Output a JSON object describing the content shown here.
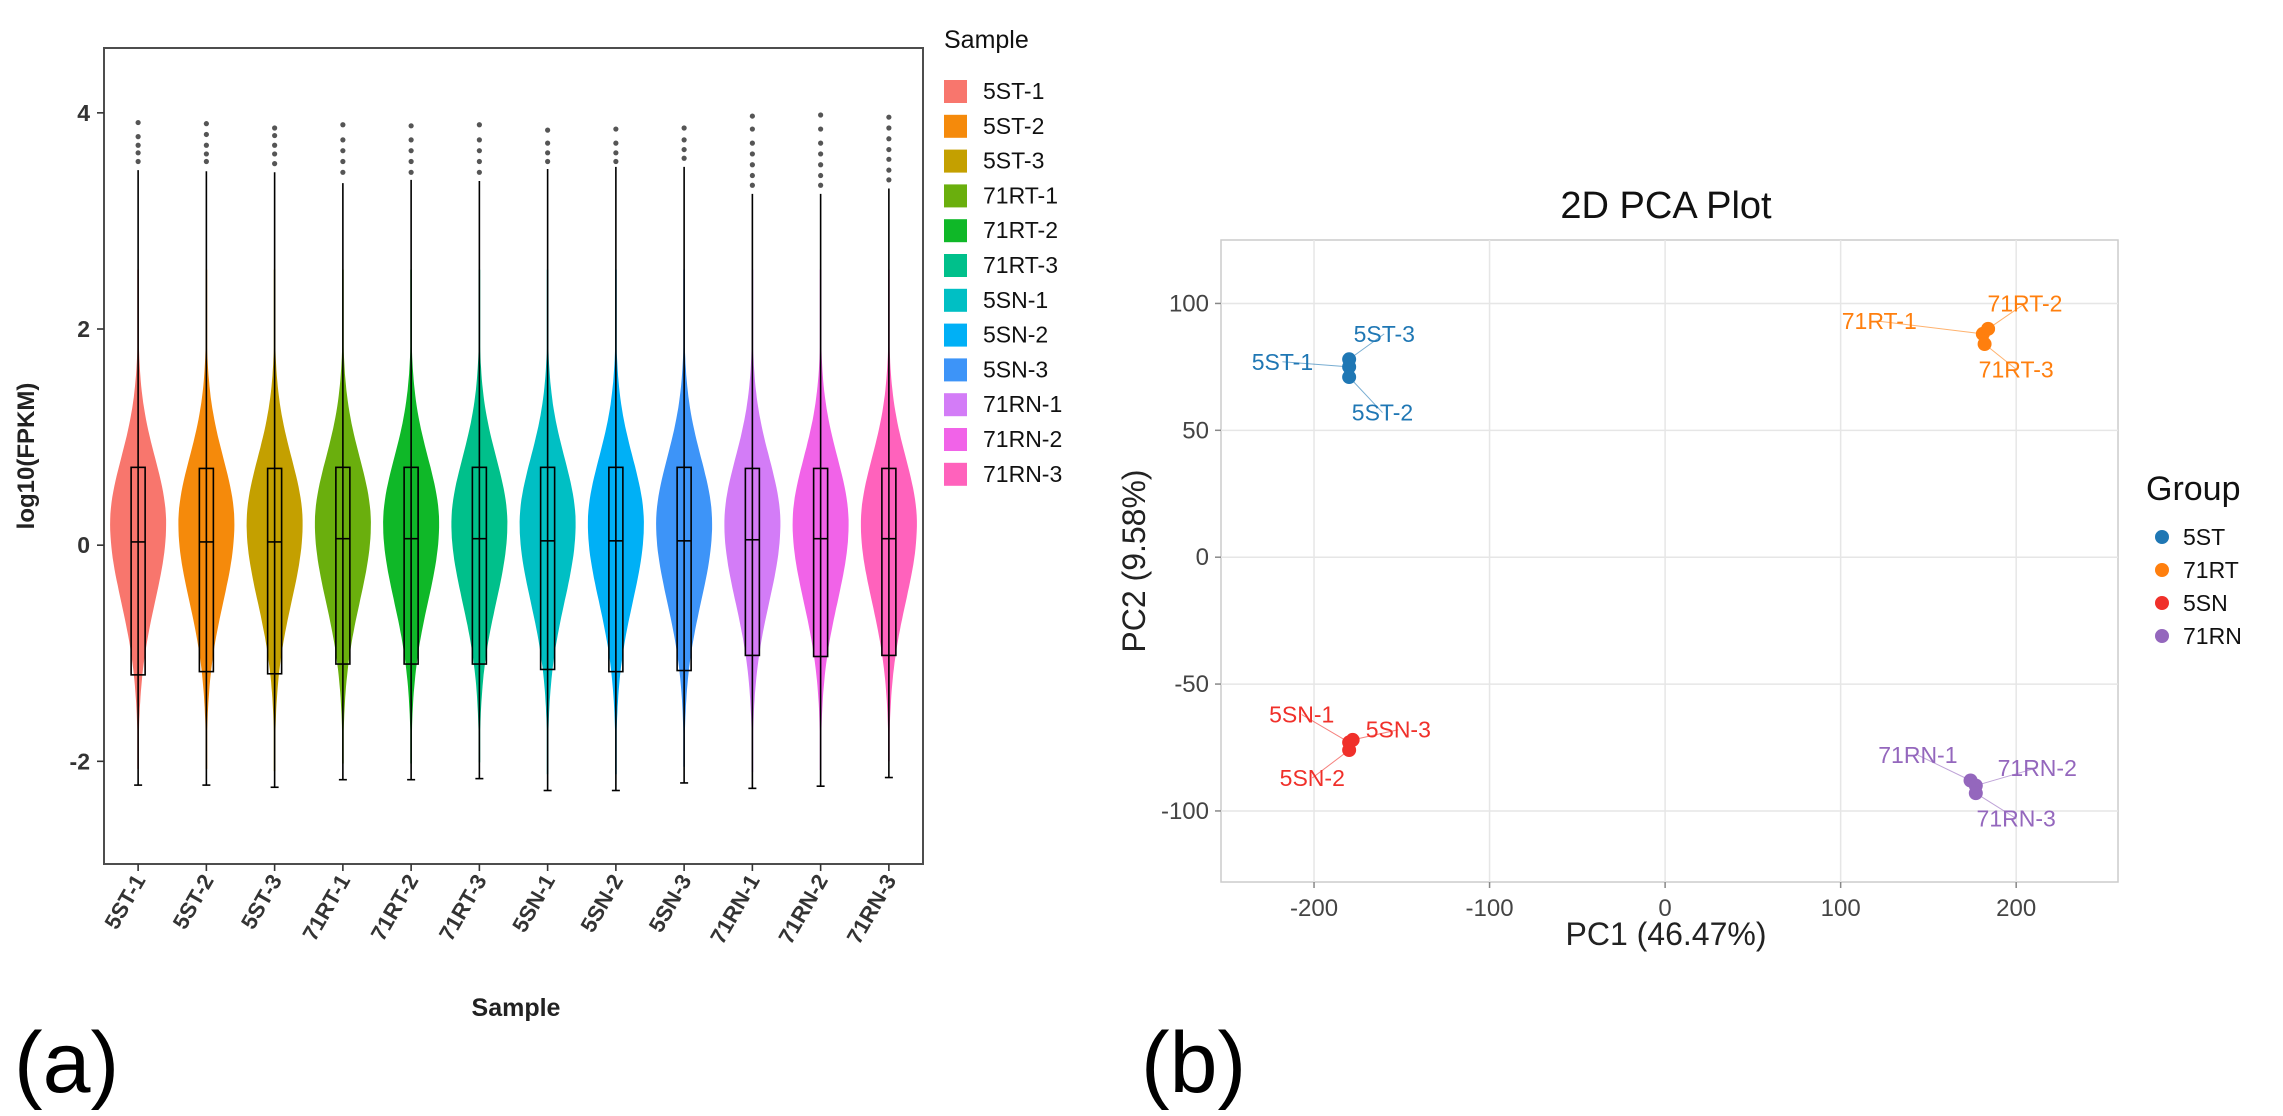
{
  "panel_labels": {
    "a": "(a)",
    "b": "(b)"
  },
  "chart_data": [
    {
      "type": "violin",
      "xlabel": "Sample",
      "ylabel": "log10(FPKM)",
      "ylim": [
        -2.95,
        4.6
      ],
      "yticks": [
        -2,
        0,
        2,
        4
      ],
      "yticklabels": [
        "-2",
        "0",
        "2",
        "4"
      ],
      "legend_title": "Sample",
      "legend_position": "right",
      "samples": [
        {
          "name": "5ST-1",
          "color": "#F8766D",
          "q1": -1.2,
          "median": 0.03,
          "q3": 0.72,
          "whisker_low": -2.22,
          "whisker_high": 3.47,
          "outliers": [
            3.55,
            3.63,
            3.7,
            3.78,
            3.91
          ]
        },
        {
          "name": "5ST-2",
          "color": "#F58A0B",
          "q1": -1.17,
          "median": 0.03,
          "q3": 0.71,
          "whisker_low": -2.22,
          "whisker_high": 3.46,
          "outliers": [
            3.55,
            3.62,
            3.7,
            3.8,
            3.9
          ]
        },
        {
          "name": "5ST-3",
          "color": "#C4A000",
          "q1": -1.19,
          "median": 0.03,
          "q3": 0.71,
          "whisker_low": -2.24,
          "whisker_high": 3.45,
          "outliers": [
            3.53,
            3.62,
            3.7,
            3.79,
            3.86
          ]
        },
        {
          "name": "71RT-1",
          "color": "#6AAF0D",
          "q1": -1.1,
          "median": 0.06,
          "q3": 0.72,
          "whisker_low": -2.17,
          "whisker_high": 3.35,
          "outliers": [
            3.45,
            3.55,
            3.65,
            3.75,
            3.89
          ]
        },
        {
          "name": "71RT-2",
          "color": "#0FB828",
          "q1": -1.1,
          "median": 0.06,
          "q3": 0.72,
          "whisker_low": -2.17,
          "whisker_high": 3.38,
          "outliers": [
            3.45,
            3.55,
            3.65,
            3.75,
            3.88
          ]
        },
        {
          "name": "71RT-3",
          "color": "#00C08B",
          "q1": -1.1,
          "median": 0.06,
          "q3": 0.72,
          "whisker_low": -2.16,
          "whisker_high": 3.37,
          "outliers": [
            3.45,
            3.55,
            3.65,
            3.75,
            3.89
          ]
        },
        {
          "name": "5SN-1",
          "color": "#00BFC4",
          "q1": -1.15,
          "median": 0.04,
          "q3": 0.72,
          "whisker_low": -2.27,
          "whisker_high": 3.48,
          "outliers": [
            3.55,
            3.63,
            3.72,
            3.84
          ]
        },
        {
          "name": "5SN-2",
          "color": "#00B0F6",
          "q1": -1.17,
          "median": 0.04,
          "q3": 0.72,
          "whisker_low": -2.27,
          "whisker_high": 3.5,
          "outliers": [
            3.55,
            3.63,
            3.72,
            3.85
          ]
        },
        {
          "name": "5SN-3",
          "color": "#3D94F8",
          "q1": -1.16,
          "median": 0.04,
          "q3": 0.72,
          "whisker_low": -2.2,
          "whisker_high": 3.5,
          "outliers": [
            3.58,
            3.66,
            3.75,
            3.86
          ]
        },
        {
          "name": "71RN-1",
          "color": "#D37CF7",
          "q1": -1.02,
          "median": 0.05,
          "q3": 0.71,
          "whisker_low": -2.25,
          "whisker_high": 3.25,
          "outliers": [
            3.33,
            3.42,
            3.52,
            3.62,
            3.72,
            3.85,
            3.97
          ]
        },
        {
          "name": "71RN-2",
          "color": "#F163E8",
          "q1": -1.03,
          "median": 0.06,
          "q3": 0.71,
          "whisker_low": -2.23,
          "whisker_high": 3.25,
          "outliers": [
            3.33,
            3.42,
            3.52,
            3.62,
            3.72,
            3.85,
            3.98
          ]
        },
        {
          "name": "71RN-3",
          "color": "#FF62BC",
          "q1": -1.02,
          "median": 0.06,
          "q3": 0.71,
          "whisker_low": -2.15,
          "whisker_high": 3.3,
          "outliers": [
            3.38,
            3.47,
            3.57,
            3.66,
            3.76,
            3.86,
            3.96
          ]
        }
      ]
    },
    {
      "type": "scatter",
      "title": "2D PCA Plot",
      "xlabel": "PC1 (46.47%)",
      "ylabel": "PC2 (9.58%)",
      "xlim": [
        -253,
        258
      ],
      "ylim": [
        -128,
        125
      ],
      "xticks": [
        -200,
        -100,
        0,
        100,
        200
      ],
      "xticklabels": [
        "-200",
        "-100",
        "0",
        "100",
        "200"
      ],
      "yticks": [
        -100,
        -50,
        0,
        50,
        100
      ],
      "yticklabels": [
        "-100",
        "-50",
        "0",
        "50",
        "100"
      ],
      "grid": true,
      "legend_title": "Group",
      "legend_position": "right",
      "groups": [
        {
          "name": "5ST",
          "color": "#1F77B4",
          "points": [
            {
              "label": "5ST-1",
              "x": -180,
              "y": 75,
              "label_x": -218,
              "label_y": 77
            },
            {
              "label": "5ST-2",
              "x": -180,
              "y": 71,
              "label_x": -161,
              "label_y": 57
            },
            {
              "label": "5ST-3",
              "x": -180,
              "y": 78,
              "label_x": -160,
              "label_y": 88
            }
          ]
        },
        {
          "name": "71RT",
          "color": "#FF7F0E",
          "points": [
            {
              "label": "71RT-1",
              "x": 181,
              "y": 88,
              "label_x": 122,
              "label_y": 93
            },
            {
              "label": "71RT-2",
              "x": 184,
              "y": 90,
              "label_x": 205,
              "label_y": 100
            },
            {
              "label": "71RT-3",
              "x": 182,
              "y": 84,
              "label_x": 200,
              "label_y": 74
            }
          ]
        },
        {
          "name": "5SN",
          "color": "#F0302A",
          "points": [
            {
              "label": "5SN-1",
              "x": -180,
              "y": -73,
              "label_x": -207,
              "label_y": -62
            },
            {
              "label": "5SN-2",
              "x": -180,
              "y": -76,
              "label_x": -201,
              "label_y": -87
            },
            {
              "label": "5SN-3",
              "x": -178,
              "y": -72,
              "label_x": -152,
              "label_y": -68
            }
          ]
        },
        {
          "name": "71RN",
          "color": "#9467BD",
          "points": [
            {
              "label": "71RN-1",
              "x": 174,
              "y": -88,
              "label_x": 144,
              "label_y": -78
            },
            {
              "label": "71RN-2",
              "x": 177,
              "y": -90,
              "label_x": 212,
              "label_y": -83
            },
            {
              "label": "71RN-3",
              "x": 177,
              "y": -93,
              "label_x": 200,
              "label_y": -103
            }
          ]
        }
      ]
    }
  ]
}
